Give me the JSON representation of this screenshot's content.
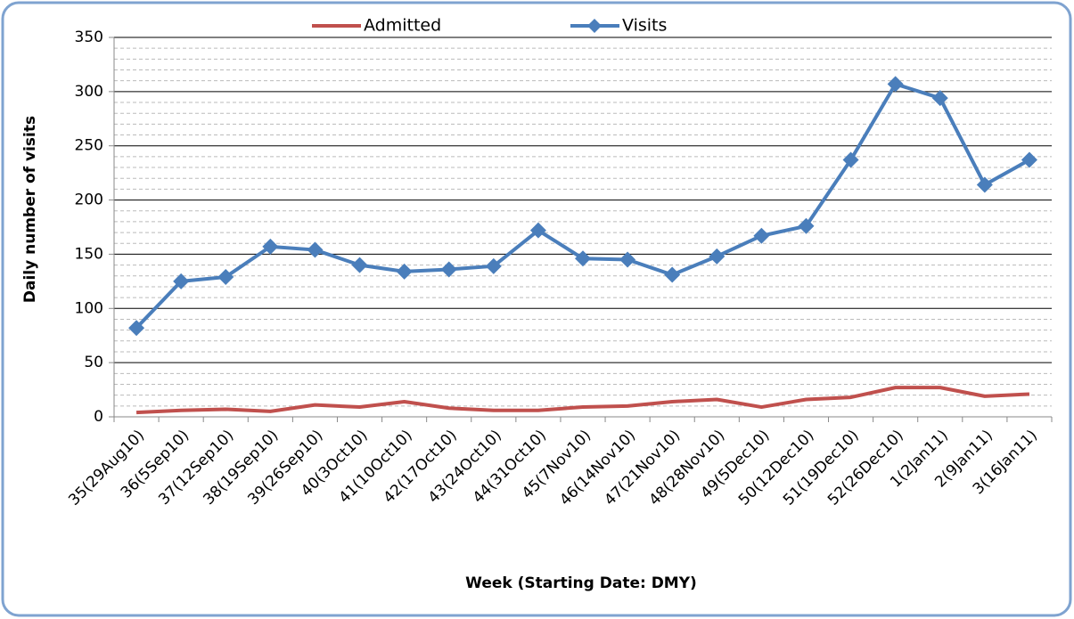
{
  "chart_data": {
    "type": "line",
    "xlabel": "Week (Starting Date: DMY)",
    "ylabel": "Daily number of visits",
    "categories": [
      "35(29Aug10)",
      "36(5Sep10)",
      "37(12Sep10)",
      "38(19Sep10)",
      "39(26Sep10)",
      "40(3Oct10)",
      "41(10Oct10)",
      "42(17Oct10)",
      "43(24Oct10)",
      "44(31Oct10)",
      "45(7Nov10)",
      "46(14Nov10)",
      "47(21Nov10)",
      "48(28Nov10)",
      "49(5Dec10)",
      "50(12Dec10)",
      "51(19Dec10)",
      "52(26Dec10)",
      "1(2Jan11)",
      "2(9Jan11)",
      "3(16Jan11)"
    ],
    "series": [
      {
        "name": "Admitted",
        "color": "#c0504d",
        "marker": "none",
        "values": [
          4,
          6,
          7,
          5,
          11,
          9,
          14,
          8,
          6,
          6,
          9,
          10,
          14,
          16,
          9,
          16,
          18,
          27,
          27,
          19,
          21
        ]
      },
      {
        "name": "Visits",
        "color": "#4a7ebb",
        "marker": "diamond",
        "values": [
          82,
          125,
          129,
          157,
          154,
          140,
          134,
          136,
          139,
          172,
          146,
          145,
          131,
          148,
          167,
          176,
          237,
          307,
          294,
          214,
          237
        ]
      }
    ],
    "ylim": [
      0,
      350
    ],
    "yticks": [
      0,
      50,
      100,
      150,
      200,
      250,
      300,
      350
    ],
    "minor_yticks": [
      10,
      20,
      30,
      40,
      60,
      70,
      80,
      90,
      110,
      120,
      130,
      140,
      160,
      170,
      180,
      190,
      210,
      220,
      230,
      240,
      260,
      270,
      280,
      290,
      310,
      320,
      330,
      340
    ],
    "grid": true,
    "legend": "top"
  }
}
